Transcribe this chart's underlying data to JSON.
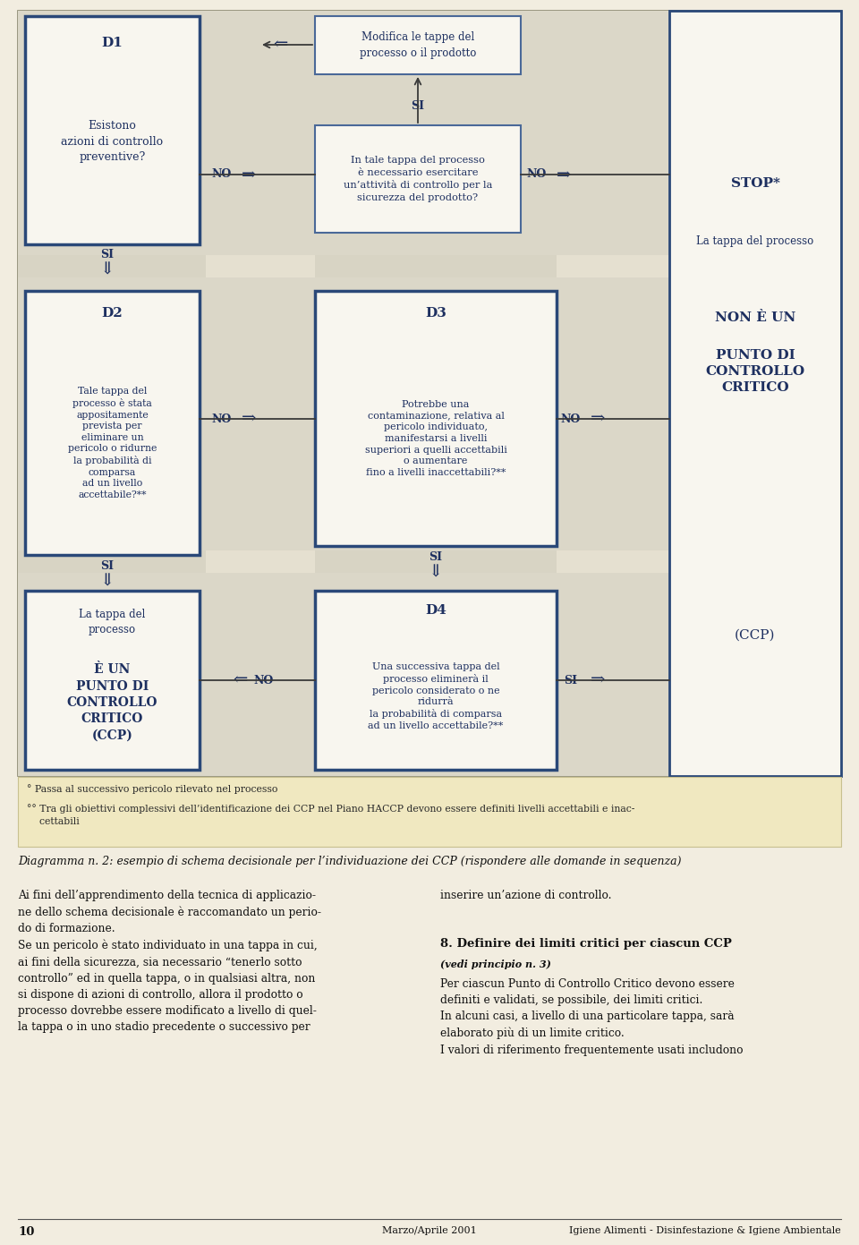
{
  "bg_color": "#f2ede0",
  "diagram_outer_bg": "#e5e0d0",
  "diagram_border_color": "#8a8870",
  "col_strip_color": "#d8d4c4",
  "box_fill": "#f8f6ef",
  "box_border_thick": "#2a4878",
  "box_border_thin": "#4a6898",
  "arrow_color": "#3a3a3a",
  "text_dark": "#1e3060",
  "note_bg": "#f0e8c0",
  "note_border": "#c8c090",
  "footer_line_color": "#555555",
  "body_text_color": "#111111",
  "d1_text": "D1\n\nEsistono\nazioni di controllo\npreventive?",
  "modifica_text": "Modifica le tappe del\nprocesso o il prodotto",
  "d2_text": "D2\n\nTale tappa del\nprocesso è stata\nappositamente\nprevista per\neliminare un\npericolo o ridurne\nla probabilità di\ncomparsa\nad un livello\naccettabile?**",
  "d3_text": "D3\n\nPotrebbe una\ncontaminazione, relativa al\npericolo individuato,\nmanifestarsi a livelli\nsuperiori a quelli accettabili\no aumentare\nfino a livelli inaccettabili?**",
  "d4_text": "D4\n\nUna successiva tappa del\nprocesso eliminerà il\npericolo considerato o ne\nriduirà\nla probabilità di comparsa\nad un livello accettabile?**",
  "itale_text": "In tale tappa del processo\nè necessario esercitare\nun’attività di controllo per la\nsicurezza del prodotto?",
  "ccp_text": "La tappa del\nprocesso\n\nÈ UN\nPUNTO DI\nCONTROLLO\nCRITICO\n(CCP)",
  "stop_text": "STOP*",
  "right_col_text": "La tappa del processo\n\nNON È UN\n\nPUNTO DI\nCONTROLLO\nCRITICO",
  "ccp_paren": "(CCP)",
  "note1": "° Passa al successivo pericolo rilevato nel processo",
  "note2": "°° Tra gli obiettivi complessivi dell’identificazione dei CCP nel Piano HACCP devono essere definiti livelli accettabili e inac-\n    cettabili",
  "caption": "Diagramma n. 2: esempio di schema decisionale per l’individuazione dei CCP (rispondere alle domande in sequenza)",
  "body_left": "Ai fini dell’apprendimento della tecnica di applicazio-\nne dello schema decisionale è raccomandato un perio-\ndo di formazione.\nSe un pericolo è stato individuato in una tappa in cui,\nai fini della sicurezza, sia necessario “tenerlo sotto\ncontrollo” ed in quella tappa, o in qualsiasi altra, non\nsi dispone di azioni di controllo, allora il prodotto o\nprocesso dovrebbe essere modificato a livello di quel-\nla tappa o in uno stadio precedente o successivo per",
  "body_right_1": "inserire un’azione di controllo.",
  "body_right_2": "8. Definire dei limiti critici per ciascun CCP",
  "body_right_3": "(vedi principio n. 3)",
  "body_right_4": "Per ciascun Punto di Controllo Critico devono essere\ndefiniti e validati, se possibile, dei limiti critici.\nIn alcuni casi, a livello di una particolare tappa, sarà\nelaborato più di un limite critico.\nI valori di riferimento frequentemente usati includono",
  "footer_num": "10",
  "footer_date": "Marzo/Aprile 2001",
  "footer_title": "Igiene Alimenti - Disinfestazione & Igiene Ambientale"
}
